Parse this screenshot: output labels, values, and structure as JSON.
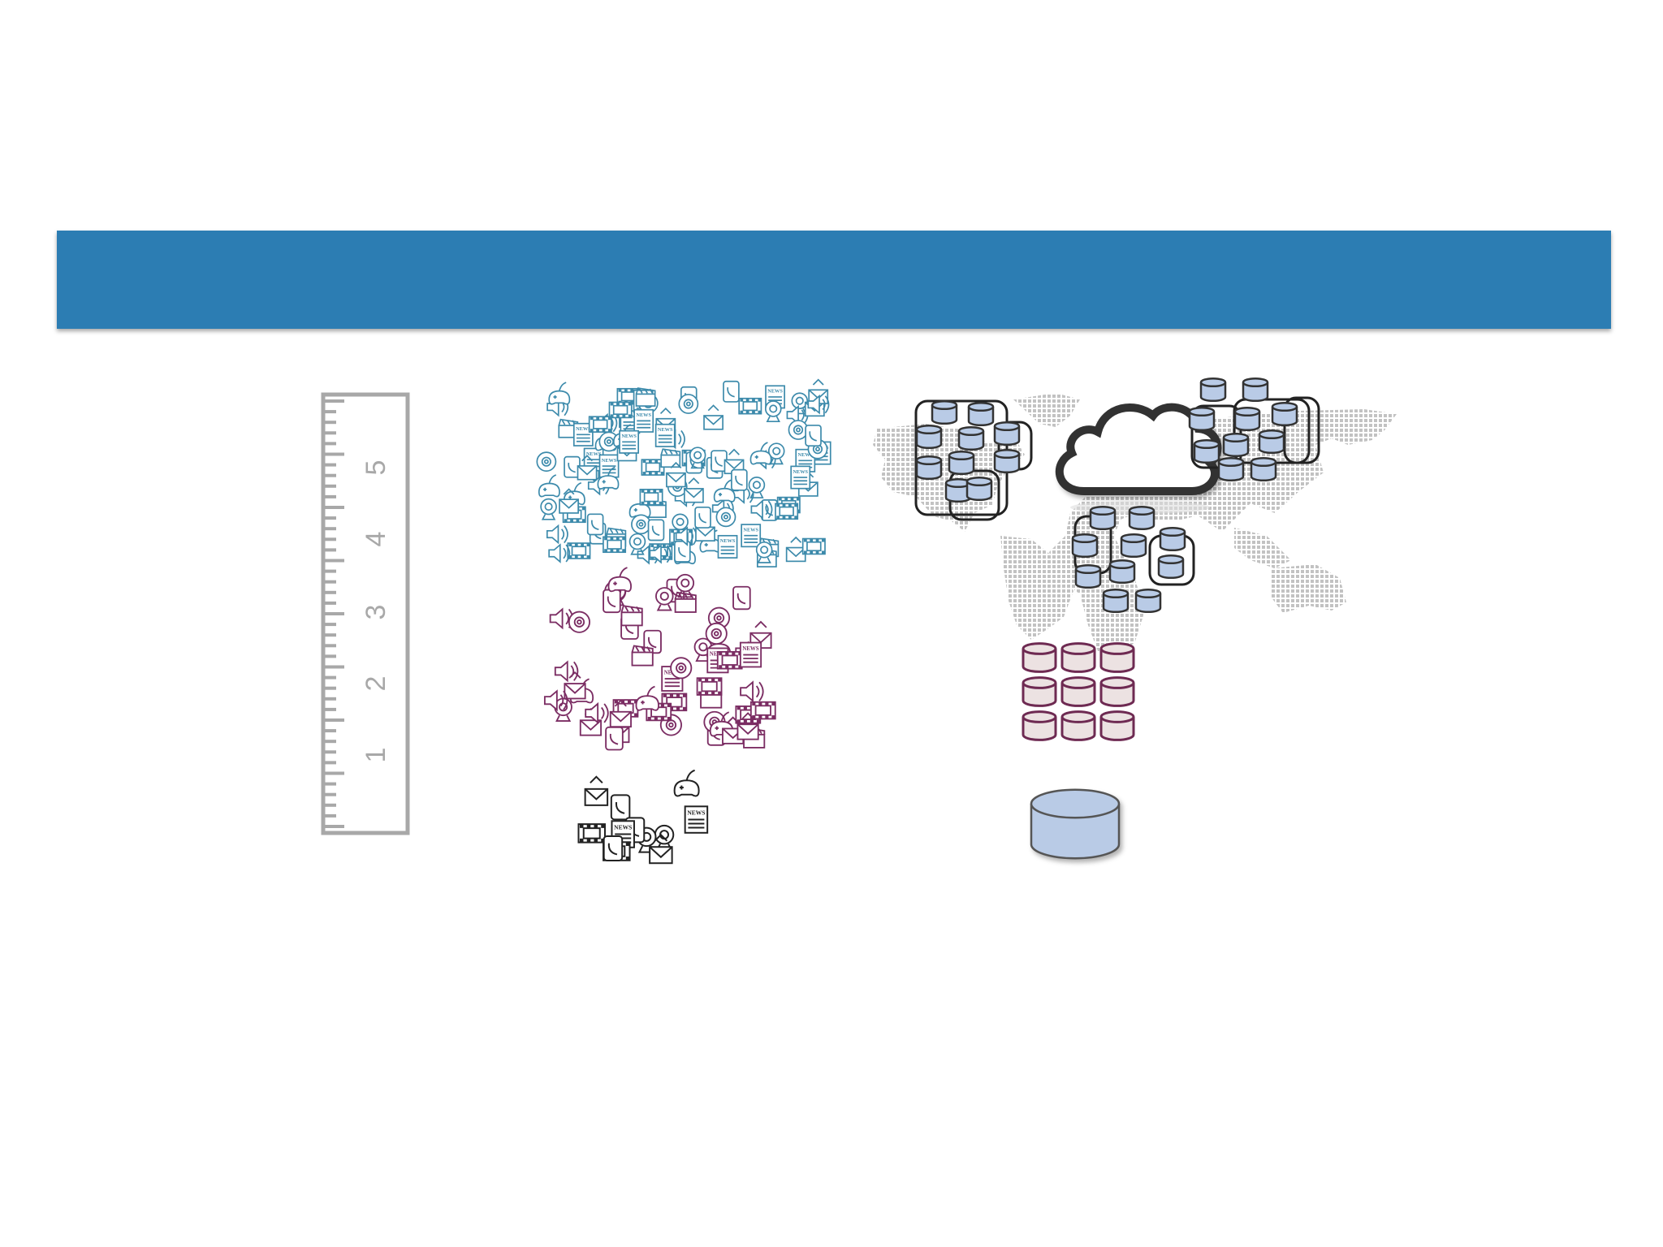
{
  "banner": {
    "color": "#2c7db3"
  },
  "ruler": {
    "labels": [
      "1",
      "2",
      "3",
      "4",
      "5"
    ],
    "color": "#a8a8a8"
  },
  "data_clusters": [
    {
      "name": "large",
      "color": "#3c8aab",
      "icons": [
        "news-icon",
        "envelope-icon",
        "film-icon",
        "speaker-icon",
        "disc-icon",
        "gamepad-icon",
        "clapperboard-icon",
        "phone-icon",
        "webcam-icon"
      ]
    },
    {
      "name": "medium",
      "color": "#7b2d63",
      "icons": [
        "news-icon",
        "envelope-icon",
        "film-icon",
        "speaker-icon",
        "disc-icon",
        "gamepad-icon",
        "clapperboard-icon",
        "phone-icon",
        "webcam-icon"
      ]
    },
    {
      "name": "small",
      "color": "#222222",
      "icons": [
        "news-icon",
        "envelope-icon",
        "film-icon",
        "disc-icon",
        "gamepad-icon",
        "phone-icon",
        "webcam-icon"
      ]
    }
  ],
  "icon_text": {
    "news": "NEWS"
  },
  "storage": {
    "cloud_db_color": "#b9cbe6",
    "grid_db_color": "#ece2e2",
    "grid_db_border": "#6e2a52",
    "single_db_color": "#b9cbe6",
    "cloud_color": "#333333",
    "map_color": "#c4c4c4"
  }
}
